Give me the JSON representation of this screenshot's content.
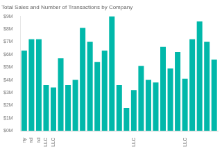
{
  "chart_data": {
    "type": "bar",
    "title": "Total Sales and Number of Transactions by Company",
    "categories": [
      "ny",
      "nd",
      "nd",
      "LLC",
      "LLC",
      null,
      null,
      null,
      null,
      null,
      null,
      null,
      null,
      null,
      null,
      "LLC",
      null,
      null,
      null,
      null,
      null,
      null,
      "LLC",
      null,
      null,
      null,
      null
    ],
    "values": [
      6300000,
      7200000,
      7200000,
      3600000,
      3400000,
      5700000,
      3600000,
      4000000,
      8100000,
      7000000,
      5400000,
      6300000,
      9000000,
      3600000,
      1800000,
      3200000,
      5100000,
      4000000,
      3800000,
      6600000,
      4900000,
      6200000,
      4100000,
      7200000,
      8600000,
      7000000,
      5600000
    ],
    "color": "#01b8aa",
    "ylim": [
      0,
      9000000
    ],
    "yticks": [
      {
        "value": 0,
        "label": "$0M"
      },
      {
        "value": 1000000,
        "label": "$1M"
      },
      {
        "value": 2000000,
        "label": "$2M"
      },
      {
        "value": 3000000,
        "label": "$3M"
      },
      {
        "value": 4000000,
        "label": "$4M"
      },
      {
        "value": 5000000,
        "label": "$5M"
      },
      {
        "value": 6000000,
        "label": "$6M"
      },
      {
        "value": 7000000,
        "label": "$7M"
      },
      {
        "value": 8000000,
        "label": "$8M"
      },
      {
        "value": 9000000,
        "label": "$9M"
      }
    ],
    "grid": false
  }
}
